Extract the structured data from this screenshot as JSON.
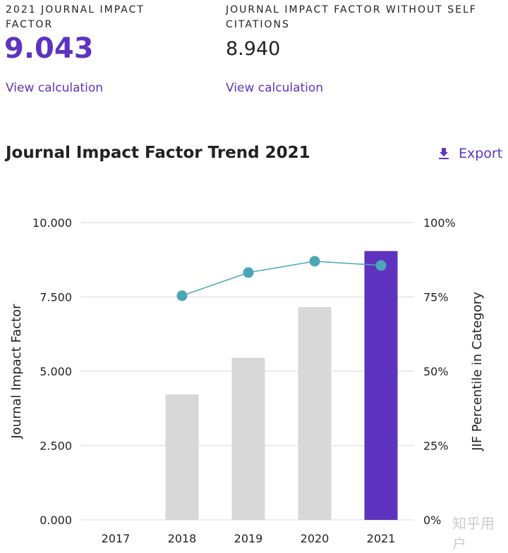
{
  "metrics": [
    {
      "label": "2021 JOURNAL IMPACT FACTOR",
      "value": "9.043",
      "link": "View calculation"
    },
    {
      "label": "JOURNAL IMPACT FACTOR WITHOUT SELF CITATIONS",
      "value": "8.940",
      "link": "View calculation"
    }
  ],
  "section_title": "Journal Impact Factor Trend 2021",
  "export_label": "Export",
  "export_icon": "download-icon",
  "watermark": "知乎用户",
  "colors": {
    "accent": "#5e33bf",
    "bar": "#d8d8d8",
    "line": "#4aa6b8"
  },
  "chart_data": {
    "type": "bar+line",
    "categories": [
      "2017",
      "2018",
      "2019",
      "2020",
      "2021"
    ],
    "bar_values": [
      null,
      4.22,
      5.45,
      7.16,
      9.043
    ],
    "line_values": [
      null,
      75.4,
      83.2,
      87.0,
      85.6
    ],
    "ylabel": "Journal Impact Factor",
    "y2label": "JIF Percentile in Category",
    "ylim": [
      0,
      10
    ],
    "y2lim": [
      0,
      100
    ],
    "yticks": [
      "0.000",
      "2.500",
      "5.000",
      "7.500",
      "10.000"
    ],
    "y2ticks": [
      "0%",
      "25%",
      "50%",
      "75%",
      "100%"
    ],
    "grid": true,
    "highlight_category": "2021"
  }
}
